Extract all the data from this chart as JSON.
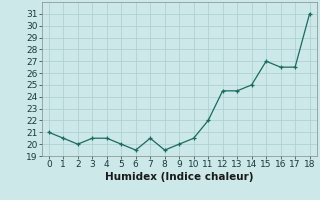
{
  "xlabel": "Humidex (Indice chaleur)",
  "x": [
    0,
    1,
    2,
    3,
    4,
    5,
    6,
    7,
    8,
    9,
    10,
    11,
    12,
    13,
    14,
    15,
    16,
    17,
    18
  ],
  "y": [
    21,
    20.5,
    20,
    20.5,
    20.5,
    20,
    19.5,
    20.5,
    19.5,
    20,
    20.5,
    22,
    24.5,
    24.5,
    25,
    27,
    26.5,
    26.5,
    31
  ],
  "line_color": "#1a6b5e",
  "marker": "+",
  "bg_color": "#cce8e8",
  "grid_color": "#aacece",
  "ylim": [
    19,
    32
  ],
  "xlim": [
    -0.5,
    18.5
  ],
  "yticks": [
    19,
    20,
    21,
    22,
    23,
    24,
    25,
    26,
    27,
    28,
    29,
    30,
    31
  ],
  "xticks": [
    0,
    1,
    2,
    3,
    4,
    5,
    6,
    7,
    8,
    9,
    10,
    11,
    12,
    13,
    14,
    15,
    16,
    17,
    18
  ],
  "tick_fontsize": 6.5,
  "xlabel_fontsize": 7.5
}
